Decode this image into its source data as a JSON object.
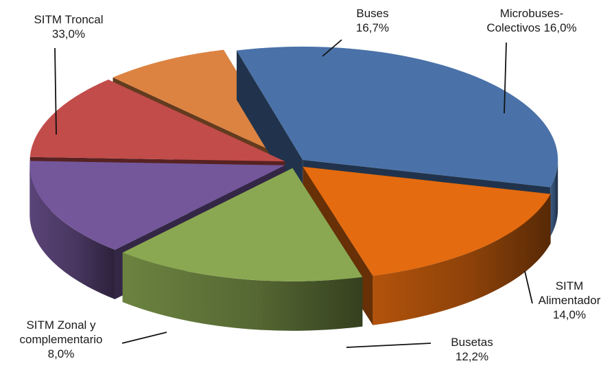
{
  "chart_data": {
    "type": "pie",
    "categories": [
      "SITM Troncal",
      "Buses",
      "Microbuses-Colectivos",
      "SITM Alimentador",
      "Busetas",
      "SITM Zonal y complementario"
    ],
    "values": [
      33.0,
      16.7,
      16.0,
      14.0,
      12.2,
      8.0
    ],
    "unit": "%",
    "labels": [
      {
        "line1": "SITM Troncal",
        "line2": "33,0%"
      },
      {
        "line1": "Buses",
        "line2": "16,7%"
      },
      {
        "line1": "Microbuses-",
        "line2": "Colectivos 16,0%"
      },
      {
        "line1": "SITM",
        "line2": "Alimentador",
        "line3": "14,0%"
      },
      {
        "line1": "Busetas",
        "line2": "12,2%"
      },
      {
        "line1": "SITM Zonal y",
        "line2": "complementario",
        "line3": "8,0%"
      }
    ],
    "colors": [
      "#4a72a8",
      "#e46b0f",
      "#8aa852",
      "#74579a",
      "#c14c4a",
      "#dc8342"
    ],
    "style": "3d-exploded",
    "legend": "none"
  }
}
